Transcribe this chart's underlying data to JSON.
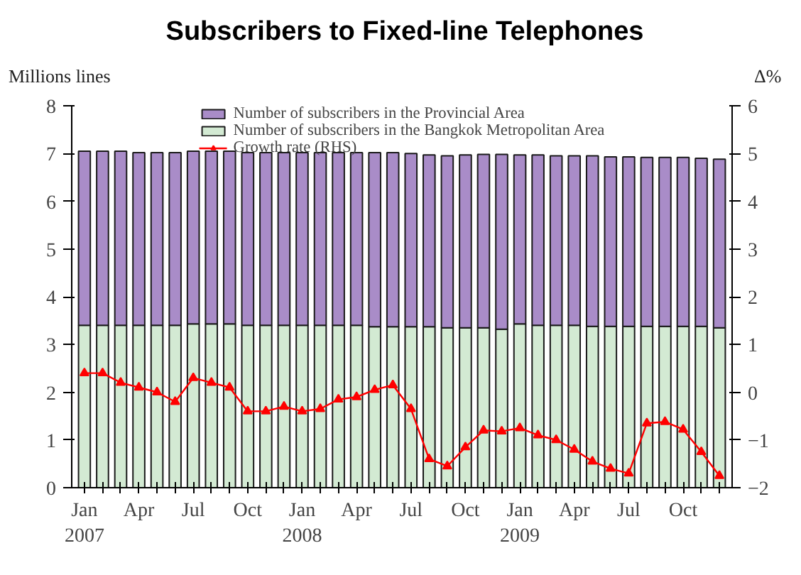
{
  "chart_data": {
    "type": "bar",
    "title": "Subscribers to Fixed-line Telephones",
    "ylabel": "Millions lines",
    "y2label": "Δ%",
    "categories": [
      "Jan\n2007",
      null,
      null,
      "Apr",
      null,
      null,
      "Jul",
      null,
      null,
      "Oct",
      null,
      null,
      "Jan\n2008",
      null,
      null,
      "Apr",
      null,
      null,
      "Jul",
      null,
      null,
      "Oct",
      null,
      null,
      "Jan\n2009",
      null,
      null,
      "Apr",
      null,
      null,
      "Jul",
      null,
      null,
      "Oct",
      null,
      null
    ],
    "stacked": true,
    "series": [
      {
        "name": "Number of subscribers in the Bangkok Metropolitan Area",
        "color": "#d3ead3",
        "values": [
          3.4,
          3.4,
          3.4,
          3.4,
          3.4,
          3.4,
          3.43,
          3.43,
          3.43,
          3.4,
          3.4,
          3.4,
          3.4,
          3.4,
          3.4,
          3.4,
          3.37,
          3.37,
          3.37,
          3.37,
          3.35,
          3.35,
          3.35,
          3.32,
          3.43,
          3.4,
          3.4,
          3.4,
          3.38,
          3.38,
          3.38,
          3.38,
          3.38,
          3.38,
          3.38,
          3.35
        ]
      },
      {
        "name": "Number of subscribers in the Provincial Area",
        "color": "#a98cc8",
        "values": [
          3.65,
          3.65,
          3.65,
          3.62,
          3.62,
          3.62,
          3.62,
          3.62,
          3.62,
          3.62,
          3.62,
          3.62,
          3.62,
          3.62,
          3.62,
          3.62,
          3.65,
          3.65,
          3.63,
          3.6,
          3.6,
          3.62,
          3.63,
          3.66,
          3.54,
          3.57,
          3.55,
          3.55,
          3.57,
          3.55,
          3.55,
          3.54,
          3.54,
          3.54,
          3.52,
          3.53
        ]
      },
      {
        "name": "Growth rate (RHS)",
        "type": "line",
        "axis": "y2",
        "color": "#ff0000",
        "marker": "triangle",
        "values": [
          0.4,
          0.4,
          0.2,
          0.1,
          0.0,
          -0.2,
          0.3,
          0.2,
          0.1,
          -0.4,
          -0.4,
          -0.3,
          -0.4,
          -0.35,
          -0.15,
          -0.1,
          0.05,
          0.15,
          -0.35,
          -1.4,
          -1.55,
          -1.15,
          -0.8,
          -0.82,
          -0.75,
          -0.9,
          -1.0,
          -1.2,
          -1.45,
          -1.6,
          -1.7,
          -0.65,
          -0.62,
          -0.78,
          -1.25,
          -1.75
        ]
      }
    ],
    "ylim": [
      0,
      8
    ],
    "yticks": [
      0,
      1,
      2,
      3,
      4,
      5,
      6,
      7,
      8
    ],
    "y2lim": [
      -2,
      6
    ],
    "y2ticks": [
      -2,
      -1,
      0,
      1,
      2,
      3,
      4,
      5,
      6
    ],
    "grid": false,
    "legend": "top"
  }
}
